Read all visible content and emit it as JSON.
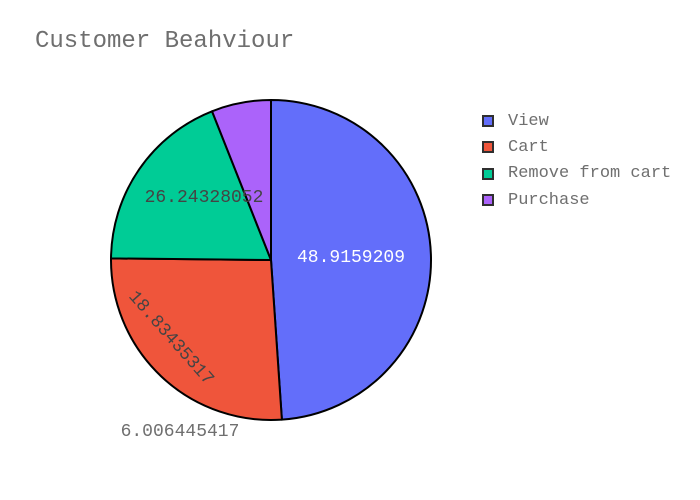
{
  "chart_data": {
    "type": "pie",
    "title": "Customer Beahviour",
    "slices": [
      {
        "label": "View",
        "value": 48.9159209,
        "display": "48.9159209",
        "color": "#636efa"
      },
      {
        "label": "Cart",
        "value": 26.24328052,
        "display": "26.24328052",
        "color": "#ef553b"
      },
      {
        "label": "Remove from cart",
        "value": 18.83435317,
        "display": "18.83435317",
        "color": "#00cc96"
      },
      {
        "label": "Purchase",
        "value": 6.006445417,
        "display": "6.006445417",
        "color": "#ab63fa"
      }
    ],
    "legend_position": "top-right",
    "direction": "clockwise"
  }
}
